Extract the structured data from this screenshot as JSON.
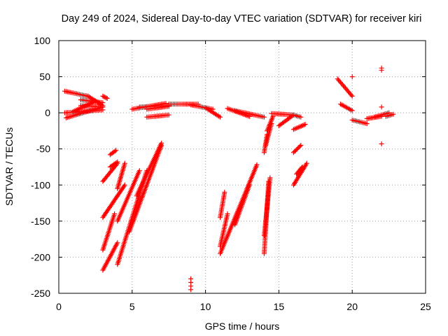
{
  "chart_data": {
    "type": "scatter",
    "title": "Day 249 of 2024, Sidereal Day-to-day VTEC variation (SDTVAR) for receiver kiri",
    "xlabel": "GPS time / hours",
    "ylabel": "SDTVAR / TECUs",
    "xlim": [
      0,
      25
    ],
    "ylim": [
      -250,
      100
    ],
    "xticks": [
      0,
      5,
      10,
      15,
      20,
      25
    ],
    "yticks": [
      100,
      50,
      0,
      -50,
      -100,
      -150,
      -200,
      -250
    ],
    "grid": true,
    "marker": "plus",
    "color": "#ff0000",
    "segments": [
      [
        [
          0.4,
          30
        ],
        [
          2.0,
          23
        ]
      ],
      [
        [
          2.0,
          23
        ],
        [
          3.0,
          10
        ]
      ],
      [
        [
          1.5,
          18
        ],
        [
          3.0,
          14
        ]
      ],
      [
        [
          1.5,
          10
        ],
        [
          3.0,
          8
        ]
      ],
      [
        [
          0.5,
          -7
        ],
        [
          3.0,
          8
        ]
      ],
      [
        [
          0.4,
          0
        ],
        [
          3.0,
          4
        ]
      ],
      [
        [
          1.0,
          2
        ],
        [
          2.5,
          16
        ]
      ],
      [
        [
          3.0,
          23
        ],
        [
          3.3,
          20
        ]
      ],
      [
        [
          5.0,
          5
        ],
        [
          7.3,
          13
        ]
      ],
      [
        [
          5.5,
          8
        ],
        [
          7.5,
          10
        ]
      ],
      [
        [
          6.0,
          5
        ],
        [
          7.5,
          9
        ]
      ],
      [
        [
          6.0,
          -6
        ],
        [
          7.5,
          -3
        ]
      ],
      [
        [
          7.5,
          12
        ],
        [
          9.5,
          12
        ]
      ],
      [
        [
          9.0,
          11
        ],
        [
          10.5,
          5
        ]
      ],
      [
        [
          10.0,
          7
        ],
        [
          11.0,
          -6
        ]
      ],
      [
        [
          11.5,
          6
        ],
        [
          13.0,
          -5
        ]
      ],
      [
        [
          12.0,
          3
        ],
        [
          14.0,
          -6
        ]
      ],
      [
        [
          14.5,
          -1
        ],
        [
          16.0,
          -3
        ]
      ],
      [
        [
          16.0,
          -3
        ],
        [
          16.5,
          -6
        ]
      ],
      [
        [
          16.0,
          -23
        ],
        [
          16.8,
          -16
        ]
      ],
      [
        [
          19.0,
          47
        ],
        [
          20.0,
          23
        ]
      ],
      [
        [
          19.2,
          12
        ],
        [
          20.0,
          3
        ]
      ],
      [
        [
          20.0,
          -10
        ],
        [
          21.0,
          -15
        ]
      ],
      [
        [
          21.0,
          -8
        ],
        [
          22.0,
          -5
        ]
      ],
      [
        [
          21.5,
          -6
        ],
        [
          22.5,
          0
        ]
      ],
      [
        [
          22.3,
          -5
        ],
        [
          22.8,
          -2
        ]
      ],
      [
        [
          3.0,
          -95
        ],
        [
          4.0,
          -70
        ]
      ],
      [
        [
          3.5,
          -75
        ],
        [
          4.0,
          -68
        ]
      ],
      [
        [
          3.5,
          -58
        ],
        [
          3.9,
          -52
        ]
      ],
      [
        [
          3.0,
          -145
        ],
        [
          4.5,
          -100
        ]
      ],
      [
        [
          4.0,
          -105
        ],
        [
          4.5,
          -70
        ]
      ],
      [
        [
          3.0,
          -190
        ],
        [
          3.8,
          -140
        ]
      ],
      [
        [
          3.0,
          -218
        ],
        [
          4.0,
          -180
        ]
      ],
      [
        [
          4.0,
          -150
        ],
        [
          5.5,
          -80
        ]
      ],
      [
        [
          4.0,
          -210
        ],
        [
          6.0,
          -80
        ]
      ],
      [
        [
          4.8,
          -165
        ],
        [
          7.0,
          -45
        ]
      ],
      [
        [
          5.3,
          -115
        ],
        [
          7.0,
          -42
        ]
      ],
      [
        [
          11.0,
          -195
        ],
        [
          13.5,
          -72
        ]
      ],
      [
        [
          11.0,
          -185
        ],
        [
          11.5,
          -140
        ]
      ],
      [
        [
          11.0,
          -145
        ],
        [
          11.3,
          -110
        ]
      ],
      [
        [
          12.0,
          -155
        ],
        [
          13.0,
          -100
        ]
      ],
      [
        [
          14.0,
          -55
        ],
        [
          14.2,
          -30
        ]
      ],
      [
        [
          14.0,
          -195
        ],
        [
          14.3,
          -95
        ]
      ],
      [
        [
          14.0,
          -170
        ],
        [
          14.4,
          -90
        ]
      ],
      [
        [
          14.1,
          -45
        ],
        [
          14.5,
          -15
        ]
      ],
      [
        [
          14.2,
          -25
        ],
        [
          14.6,
          -5
        ]
      ],
      [
        [
          15.0,
          -18
        ],
        [
          16.0,
          -3
        ]
      ],
      [
        [
          16.0,
          -100
        ],
        [
          16.9,
          -70
        ]
      ],
      [
        [
          16.2,
          -85
        ],
        [
          16.6,
          -75
        ]
      ],
      [
        [
          16.0,
          -55
        ],
        [
          16.5,
          -45
        ]
      ]
    ],
    "isolated_points": [
      [
        9.0,
        -230
      ],
      [
        9.0,
        -235
      ],
      [
        9.0,
        -240
      ],
      [
        9.0,
        -245
      ],
      [
        20.0,
        50
      ],
      [
        22.0,
        62
      ],
      [
        22.0,
        59
      ],
      [
        22.0,
        8
      ],
      [
        22.0,
        -43
      ]
    ]
  }
}
